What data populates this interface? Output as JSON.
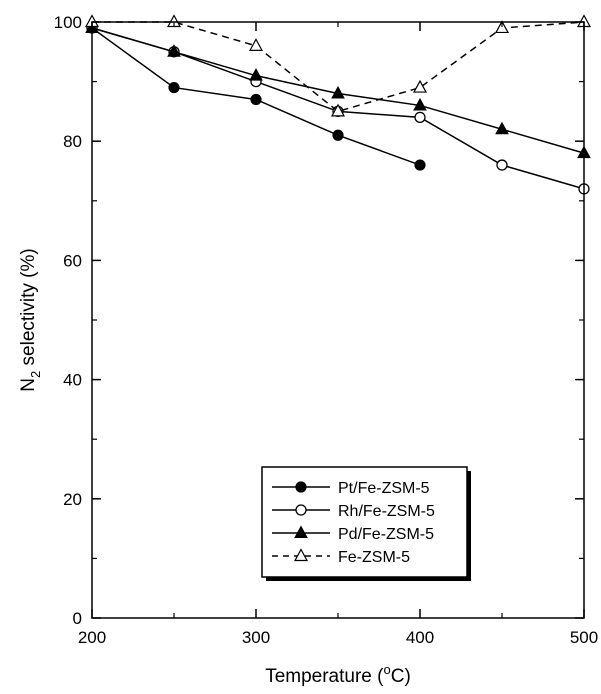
{
  "chart_data": {
    "type": "line",
    "title": "",
    "xlabel": "Temperature (°C)",
    "xlabel_parts": {
      "base": "Temperature (",
      "sup": "o",
      "tail": "C)"
    },
    "ylabel": "N2 selectivity (%)",
    "ylabel_parts": {
      "base": "N",
      "sub": "2",
      "tail": " selectivity (%)"
    },
    "xlim": [
      200,
      500
    ],
    "ylim": [
      0,
      100
    ],
    "xticks": [
      200,
      300,
      400,
      500
    ],
    "yticks": [
      0,
      20,
      40,
      60,
      80,
      100
    ],
    "grid": false,
    "legend_position": "center-right",
    "series": [
      {
        "name": "Pt/Fe-ZSM-5",
        "marker": "filled-circle",
        "line": "solid",
        "x": [
          200,
          250,
          300,
          350,
          400
        ],
        "y": [
          99,
          89,
          87,
          81,
          76
        ]
      },
      {
        "name": "Rh/Fe-ZSM-5",
        "marker": "open-circle",
        "line": "solid",
        "x": [
          200,
          250,
          300,
          350,
          400,
          450,
          500
        ],
        "y": [
          99,
          95,
          90,
          85,
          84,
          76,
          72
        ]
      },
      {
        "name": "Pd/Fe-ZSM-5",
        "marker": "filled-triangle",
        "line": "solid",
        "x": [
          200,
          250,
          300,
          350,
          400,
          450,
          500
        ],
        "y": [
          99,
          95,
          91,
          88,
          86,
          82,
          78
        ]
      },
      {
        "name": "Fe-ZSM-5",
        "marker": "open-triangle",
        "line": "dashed",
        "x": [
          200,
          250,
          300,
          350,
          400,
          450,
          500
        ],
        "y": [
          100,
          100,
          96,
          85,
          89,
          99,
          100
        ]
      }
    ]
  }
}
